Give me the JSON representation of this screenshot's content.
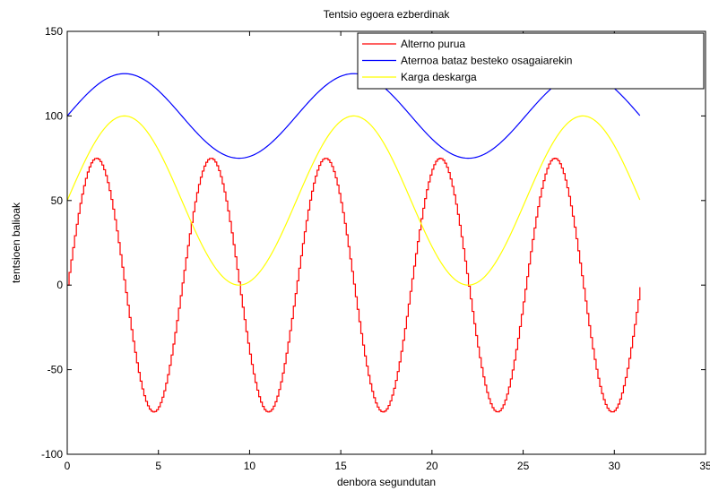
{
  "chart_data": {
    "type": "line",
    "title": "Tentsio egoera ezberdinak",
    "xlabel": "denbora segundutan",
    "ylabel": "tentsioen balioak",
    "xlim": [
      0,
      35
    ],
    "ylim": [
      -100,
      150
    ],
    "xticks": [
      0,
      5,
      10,
      15,
      20,
      25,
      30,
      35
    ],
    "yticks": [
      -100,
      -50,
      0,
      50,
      100,
      150
    ],
    "grid": false,
    "legend_position": "top-right",
    "x_range": [
      0,
      31.4
    ],
    "series": [
      {
        "name": "Alterno purua",
        "color": "#ff0000",
        "formula": "75*sin(x)",
        "amplitude": 75,
        "angular_frequency": 1,
        "offset": 0,
        "staircase": true
      },
      {
        "name": "Aternoa bataz besteko osagaiarekin",
        "color": "#0000ff",
        "formula": "100+25*sin(x/2)",
        "amplitude": 25,
        "angular_frequency": 0.5,
        "offset": 100,
        "staircase": false
      },
      {
        "name": "Karga deskarga",
        "color": "#ffff00",
        "formula": "50+50*sin(x/2)",
        "amplitude": 50,
        "angular_frequency": 0.5,
        "offset": 50,
        "staircase": false
      }
    ]
  }
}
